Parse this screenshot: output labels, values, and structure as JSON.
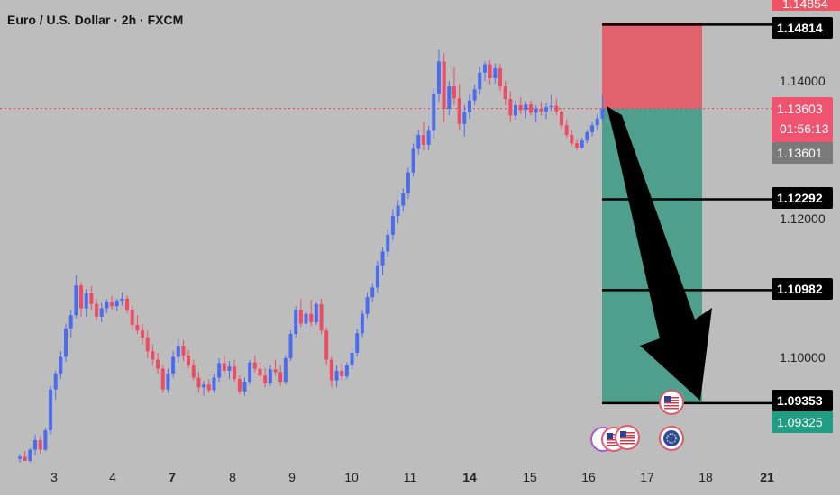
{
  "header": {
    "title": "Euro / U.S. Dollar · 2h · FXCM"
  },
  "colors": {
    "up": "#4a6df0",
    "down": "#ef4b63",
    "stop_zone": "#e1626c",
    "target_zone": "#4e9f8c",
    "price_line": "#e8415c",
    "countdown_bg": "#f0536f",
    "prev_close_bg": "#7a7a7a",
    "final_target_bg": "#1f9e84",
    "stop_tag_bg": "#ef5464",
    "level_line": "#000000"
  },
  "axis": {
    "x_ticks": [
      "3",
      "4",
      "7",
      "8",
      "9",
      "10",
      "11",
      "14",
      "15",
      "16",
      "17",
      "18",
      "21"
    ],
    "y_ticks": [
      "1.14000",
      "1.12000",
      "1.10000"
    ]
  },
  "price_tags": {
    "top_partial": "1.14854",
    "stop": "1.14814",
    "current": "1.13603",
    "countdown": "01:56:13",
    "prev_close": "1.13601",
    "target_1": "1.12292",
    "target_2": "1.10982",
    "target_3": "1.09353",
    "bottom_tag": "1.09325"
  },
  "chart_data": {
    "type": "candlestick",
    "symbol": "Euro / U.S. Dollar",
    "timeframe": "2h",
    "source": "FXCM",
    "x_ticks": [
      "3",
      "4",
      "7",
      "8",
      "9",
      "10",
      "11",
      "14",
      "15",
      "16",
      "17",
      "18",
      "21"
    ],
    "y_ticks": [
      1.14,
      1.12,
      1.1
    ],
    "ylim": [
      1.085,
      1.1485
    ],
    "candles": [
      [
        1.0855,
        1.0862,
        1.085,
        1.0858
      ],
      [
        1.0858,
        1.0866,
        1.0852,
        1.0852
      ],
      [
        1.0852,
        1.087,
        1.085,
        1.0868
      ],
      [
        1.0868,
        1.089,
        1.086,
        1.0882
      ],
      [
        1.0882,
        1.0888,
        1.0862,
        1.0868
      ],
      [
        1.0868,
        1.09,
        1.0866,
        1.0896
      ],
      [
        1.0896,
        1.096,
        1.089,
        1.0955
      ],
      [
        1.0955,
        1.0982,
        1.094,
        1.0978
      ],
      [
        1.0978,
        1.101,
        1.097,
        1.1002
      ],
      [
        1.1002,
        1.105,
        1.0995,
        1.1043
      ],
      [
        1.1043,
        1.107,
        1.103,
        1.1062
      ],
      [
        1.1062,
        1.112,
        1.1058,
        1.1105
      ],
      [
        1.1105,
        1.111,
        1.106,
        1.1072
      ],
      [
        1.1072,
        1.11,
        1.106,
        1.1094
      ],
      [
        1.1094,
        1.1104,
        1.107,
        1.1078
      ],
      [
        1.1078,
        1.1085,
        1.1055,
        1.106
      ],
      [
        1.106,
        1.108,
        1.1052,
        1.1072
      ],
      [
        1.1072,
        1.1085,
        1.1065,
        1.1081
      ],
      [
        1.1081,
        1.109,
        1.107,
        1.1075
      ],
      [
        1.1075,
        1.1086,
        1.1068,
        1.1083
      ],
      [
        1.1083,
        1.1095,
        1.1076,
        1.1086
      ],
      [
        1.1086,
        1.109,
        1.1065,
        1.107
      ],
      [
        1.107,
        1.1076,
        1.104,
        1.1048
      ],
      [
        1.1048,
        1.1062,
        1.1035,
        1.104
      ],
      [
        1.104,
        1.105,
        1.102,
        1.103
      ],
      [
        1.103,
        1.104,
        1.1,
        1.101
      ],
      [
        1.101,
        1.102,
        1.099,
        1.0998
      ],
      [
        1.0998,
        1.1008,
        1.0978,
        1.0985
      ],
      [
        1.0985,
        1.099,
        1.095,
        1.0955
      ],
      [
        1.0955,
        1.0985,
        1.095,
        1.0978
      ],
      [
        1.0978,
        1.101,
        1.0972,
        1.1002
      ],
      [
        1.1002,
        1.1028,
        1.0994,
        1.1018
      ],
      [
        1.1018,
        1.1026,
        1.0996,
        1.1004
      ],
      [
        1.1004,
        1.1012,
        1.0986,
        1.099
      ],
      [
        1.099,
        1.0998,
        1.0968,
        1.0972
      ],
      [
        1.0972,
        1.098,
        1.095,
        1.0958
      ],
      [
        1.0958,
        1.0968,
        1.0946,
        1.0962
      ],
      [
        1.0962,
        1.097,
        1.095,
        1.0954
      ],
      [
        1.0954,
        1.0978,
        1.095,
        1.0972
      ],
      [
        1.0972,
        1.1,
        1.0966,
        1.0993
      ],
      [
        1.0993,
        1.1005,
        1.0978,
        1.0982
      ],
      [
        1.0982,
        1.0996,
        1.097,
        1.0988
      ],
      [
        1.0988,
        1.0998,
        1.0966,
        1.097
      ],
      [
        1.097,
        1.0975,
        1.0948,
        1.0952
      ],
      [
        1.0952,
        1.0972,
        1.0946,
        1.0966
      ],
      [
        1.0966,
        1.0998,
        1.0962,
        1.0994
      ],
      [
        1.0994,
        1.1004,
        1.098,
        1.0985
      ],
      [
        1.0985,
        1.0995,
        1.0968,
        1.0975
      ],
      [
        1.0975,
        1.0986,
        1.0958,
        1.0964
      ],
      [
        1.0964,
        1.099,
        1.096,
        1.0984
      ],
      [
        1.0984,
        1.0998,
        1.0975,
        1.098
      ],
      [
        1.098,
        1.099,
        1.096,
        1.0966
      ],
      [
        1.0966,
        1.1005,
        1.0962,
        1.1
      ],
      [
        1.1,
        1.104,
        1.0996,
        1.1035
      ],
      [
        1.1035,
        1.1075,
        1.103,
        1.107
      ],
      [
        1.107,
        1.1085,
        1.1045,
        1.105
      ],
      [
        1.105,
        1.107,
        1.104,
        1.1064
      ],
      [
        1.1064,
        1.1084,
        1.1046,
        1.1052
      ],
      [
        1.1052,
        1.1082,
        1.1048,
        1.1078
      ],
      [
        1.1078,
        1.1086,
        1.1035,
        1.104
      ],
      [
        1.104,
        1.1044,
        1.099,
        1.0998
      ],
      [
        1.0998,
        1.1003,
        1.0958,
        1.0968
      ],
      [
        1.0968,
        1.099,
        1.0958,
        1.0982
      ],
      [
        1.0982,
        1.0992,
        1.0968,
        1.0974
      ],
      [
        1.0974,
        1.0994,
        1.097,
        1.099
      ],
      [
        1.099,
        1.1015,
        1.0984,
        1.1008
      ],
      [
        1.1008,
        1.1042,
        1.1003,
        1.1036
      ],
      [
        1.1036,
        1.107,
        1.103,
        1.1064
      ],
      [
        1.1064,
        1.1095,
        1.1058,
        1.1088
      ],
      [
        1.1088,
        1.1108,
        1.108,
        1.1102
      ],
      [
        1.1102,
        1.114,
        1.1095,
        1.1134
      ],
      [
        1.1134,
        1.116,
        1.112,
        1.1154
      ],
      [
        1.1154,
        1.1185,
        1.1146,
        1.1178
      ],
      [
        1.1178,
        1.1215,
        1.117,
        1.1205
      ],
      [
        1.1205,
        1.1228,
        1.1194,
        1.122
      ],
      [
        1.122,
        1.1245,
        1.1212,
        1.1238
      ],
      [
        1.1238,
        1.1275,
        1.123,
        1.1268
      ],
      [
        1.1268,
        1.131,
        1.1262,
        1.1302
      ],
      [
        1.1302,
        1.133,
        1.1294,
        1.1322
      ],
      [
        1.1322,
        1.134,
        1.13,
        1.1308
      ],
      [
        1.1308,
        1.1335,
        1.13,
        1.1328
      ],
      [
        1.1328,
        1.139,
        1.1318,
        1.1382
      ],
      [
        1.1382,
        1.1445,
        1.137,
        1.1428
      ],
      [
        1.1428,
        1.144,
        1.134,
        1.136
      ],
      [
        1.136,
        1.14,
        1.135,
        1.1392
      ],
      [
        1.1392,
        1.142,
        1.1365,
        1.1375
      ],
      [
        1.1375,
        1.1395,
        1.133,
        1.1338
      ],
      [
        1.1338,
        1.1365,
        1.132,
        1.1355
      ],
      [
        1.1355,
        1.138,
        1.1345,
        1.1372
      ],
      [
        1.1372,
        1.1395,
        1.1365,
        1.1388
      ],
      [
        1.1388,
        1.142,
        1.138,
        1.1412
      ],
      [
        1.1412,
        1.1428,
        1.14,
        1.1424
      ],
      [
        1.1424,
        1.143,
        1.1395,
        1.1404
      ],
      [
        1.1404,
        1.1425,
        1.1396,
        1.1418
      ],
      [
        1.1418,
        1.1425,
        1.1385,
        1.1392
      ],
      [
        1.1392,
        1.14,
        1.1365,
        1.1374
      ],
      [
        1.1374,
        1.1385,
        1.134,
        1.135
      ],
      [
        1.135,
        1.1372,
        1.1344,
        1.1365
      ],
      [
        1.1365,
        1.1376,
        1.1352,
        1.1358
      ],
      [
        1.1358,
        1.137,
        1.1346,
        1.1366
      ],
      [
        1.1366,
        1.1372,
        1.135,
        1.1354
      ],
      [
        1.1354,
        1.1365,
        1.134,
        1.136
      ],
      [
        1.136,
        1.137,
        1.135,
        1.1356
      ],
      [
        1.1356,
        1.1368,
        1.1345,
        1.1362
      ],
      [
        1.1362,
        1.138,
        1.1356,
        1.1364
      ],
      [
        1.1364,
        1.1375,
        1.135,
        1.1356
      ],
      [
        1.1356,
        1.136,
        1.133,
        1.1336
      ],
      [
        1.1336,
        1.1344,
        1.1318,
        1.1322
      ],
      [
        1.1322,
        1.133,
        1.1306,
        1.131
      ],
      [
        1.131,
        1.1315,
        1.13,
        1.1304
      ],
      [
        1.1304,
        1.1318,
        1.1302,
        1.1314
      ],
      [
        1.1314,
        1.133,
        1.131,
        1.1326
      ],
      [
        1.1326,
        1.134,
        1.132,
        1.1336
      ],
      [
        1.1336,
        1.1352,
        1.133,
        1.1346
      ],
      [
        1.1346,
        1.138,
        1.1342,
        1.136
      ]
    ],
    "levels": {
      "stop": 1.14814,
      "entry": 1.13603,
      "target_1": 1.12292,
      "target_2": 1.10982,
      "target_3": 1.09353
    }
  }
}
